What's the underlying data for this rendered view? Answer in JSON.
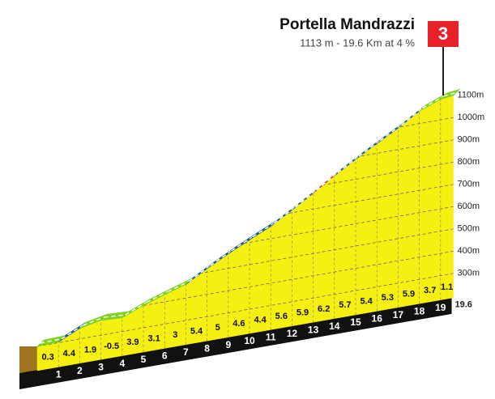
{
  "chart_data": {
    "type": "climb-profile",
    "title": "Portella Mandrazzi",
    "subtitle": "1113 m - 19.6 Km at 4 %",
    "category": "3",
    "xlim": [
      0,
      19.6
    ],
    "xticks": [
      1,
      2,
      3,
      4,
      5,
      6,
      7,
      8,
      9,
      10,
      11,
      12,
      13,
      14,
      15,
      16,
      17,
      18,
      19,
      19.6
    ],
    "ylim": [
      300,
      1100
    ],
    "yticks": [
      {
        "value": 300,
        "label": "300m"
      },
      {
        "value": 400,
        "label": "400m"
      },
      {
        "value": 500,
        "label": "500m"
      },
      {
        "value": 600,
        "label": "600m"
      },
      {
        "value": 700,
        "label": "700m"
      },
      {
        "value": 800,
        "label": "800m"
      },
      {
        "value": 900,
        "label": "900m"
      },
      {
        "value": 1000,
        "label": "1000m"
      },
      {
        "value": 1100,
        "label": "1100m"
      }
    ],
    "values": [
      0.3,
      4.4,
      1.9,
      -0.5,
      3.9,
      3.1,
      3.0,
      5.4,
      5.0,
      4.6,
      4.4,
      5.6,
      5.9,
      6.2,
      5.7,
      5.4,
      5.3,
      5.9,
      3.7,
      1.1
    ],
    "colors": [
      "#7ed321",
      "#1b5b8c",
      "#7ed321",
      "#7ed321",
      "#7ed321",
      "#7ed321",
      "#7ed321",
      "#1b5b8c",
      "#1b5b8c",
      "#1b5b8c",
      "#1b5b8c",
      "#1b5b8c",
      "#1b5b8c",
      "#e8202a",
      "#1b5b8c",
      "#1b5b8c",
      "#1b5b8c",
      "#1b5b8c",
      "#7ed321",
      "#7ed321"
    ],
    "fill": "#f5ef12",
    "grid": true
  }
}
